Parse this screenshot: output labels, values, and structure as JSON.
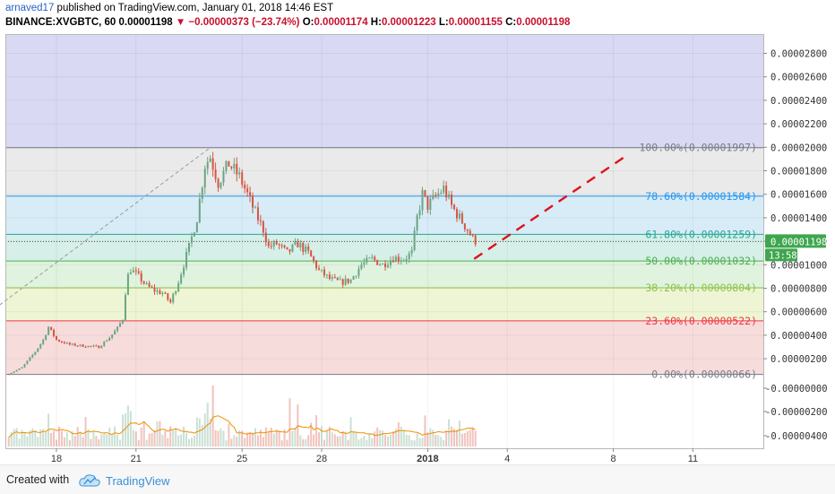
{
  "header": {
    "line1_user": "arnaved17",
    "line1_rest": " published on TradingView.com, January 01, 2018 14:46 EST",
    "symbol": "BINANCE:XVGBTC, 60",
    "last_price": "0.00001198",
    "change": "▼ −0.00000373 (−23.74%)",
    "o_label": "O:",
    "o_value": "0.00001174",
    "h_label": "H:",
    "h_value": "0.00001223",
    "l_label": "L:",
    "l_value": "0.00001155",
    "c_label": "C:",
    "c_value": "0.00001198"
  },
  "footer": {
    "created_with": "Created with",
    "brand": "TradingView"
  },
  "colors": {
    "up": "#6ba583",
    "down": "#d75442",
    "volume_ma": "#f09000",
    "price_badge": "#3fa64f",
    "trend": "#e0111e"
  },
  "chart_data": {
    "type": "candlestick",
    "title": "BINANCE:XVGBTC, 60",
    "x_tick_labels": [
      "18",
      "21",
      "25",
      "28",
      "2018",
      "4",
      "8",
      "11"
    ],
    "price_axis": {
      "ylim": [
        0.0,
        2.9e-05
      ],
      "tick_labels": [
        "0.00002800",
        "0.00002600",
        "0.00002400",
        "0.00002200",
        "0.00002000",
        "0.00001800",
        "0.00001600",
        "0.00001400",
        "0.00001200",
        "0.00001000",
        "0.00000800",
        "0.00000600",
        "0.00000400",
        "0.00000200"
      ]
    },
    "volume_axis": {
      "tick_labels": [
        "-0.00000000",
        "-0.00000200",
        "-0.00000400"
      ]
    },
    "current_price_label": "0.00001198",
    "countdown_label": "13:58",
    "fibonacci_levels": [
      {
        "label": "100.00%(0.00001997)",
        "price": 1.997e-05,
        "color": "#787b86"
      },
      {
        "label": "78.60%(0.00001584)",
        "price": 1.584e-05,
        "color": "#2196f3"
      },
      {
        "label": "61.80%(0.00001259)",
        "price": 1.259e-05,
        "color": "#26a69a"
      },
      {
        "label": "50.00%(0.00001032)",
        "price": 1.032e-05,
        "color": "#4caf50"
      },
      {
        "label": "38.20%(0.00000804)",
        "price": 8.04e-06,
        "color": "#8bc34a"
      },
      {
        "label": "23.60%(0.00000522)",
        "price": 5.22e-06,
        "color": "#f23645"
      },
      {
        "label": "0.00%(0.00000066)",
        "price": 6.6e-07,
        "color": "#787b86"
      }
    ],
    "price_path": [
      [
        16.2,
        7e-07
      ],
      [
        16.7,
        1.25e-06
      ],
      [
        17.2,
        2.6e-06
      ],
      [
        17.5,
        3.6e-06
      ],
      [
        17.7,
        4.7e-06
      ],
      [
        18.0,
        3.6e-06
      ],
      [
        18.5,
        3.2e-06
      ],
      [
        19.0,
        3.1e-06
      ],
      [
        19.6,
        3e-06
      ],
      [
        20.0,
        3.8e-06
      ],
      [
        20.3,
        4.6e-06
      ],
      [
        20.5,
        5.4e-06
      ],
      [
        20.65,
        8.8e-06
      ],
      [
        20.8,
        9.6e-06
      ],
      [
        21.1,
        9e-06
      ],
      [
        21.4,
        8.2e-06
      ],
      [
        21.7,
        7.8e-06
      ],
      [
        22.0,
        7.6e-06
      ],
      [
        22.3,
        6.8e-06
      ],
      [
        22.6,
        8.6e-06
      ],
      [
        23.0,
        1.15e-05
      ],
      [
        23.3,
        1.4e-05
      ],
      [
        23.6,
        1.85e-05
      ],
      [
        23.8,
        1.92e-05
      ],
      [
        24.1,
        1.7e-05
      ],
      [
        24.5,
        1.86e-05
      ],
      [
        24.9,
        1.75e-05
      ],
      [
        25.2,
        1.6e-05
      ],
      [
        25.5,
        1.44e-05
      ],
      [
        25.8,
        1.3e-05
      ],
      [
        26.0,
        1.15e-05
      ],
      [
        26.3,
        1.18e-05
      ],
      [
        26.7,
        1.1e-05
      ],
      [
        27.1,
        1.18e-05
      ],
      [
        27.5,
        1.1e-05
      ],
      [
        27.9,
        9.5e-06
      ],
      [
        28.3,
        8.8e-06
      ],
      [
        28.7,
        8.5e-06
      ],
      [
        29.1,
        8.7e-06
      ],
      [
        29.5,
        1e-05
      ],
      [
        29.9,
        1.05e-05
      ],
      [
        30.3,
        1e-05
      ],
      [
        30.7,
        1.06e-05
      ],
      [
        31.1,
        1.05e-05
      ],
      [
        31.4,
        1.1e-05
      ],
      [
        31.6,
        1.4e-05
      ],
      [
        31.8,
        1.6e-05
      ],
      [
        32.0,
        1.5e-05
      ],
      [
        32.3,
        1.58e-05
      ],
      [
        32.6,
        1.65e-05
      ],
      [
        32.9,
        1.5e-05
      ],
      [
        33.2,
        1.4e-05
      ],
      [
        33.5,
        1.3e-05
      ],
      [
        33.7,
        1.22e-05
      ],
      [
        33.85,
        1.198e-05
      ]
    ],
    "trend_line": {
      "style": "dashed",
      "points": [
        [
          33.75,
          1.05e-05
        ],
        [
          39.5,
          1.93e-05
        ]
      ]
    },
    "guide_line": {
      "style": "dashed",
      "points": [
        [
          15.1,
          5.3e-06
        ],
        [
          23.8,
          1.997e-05
        ]
      ]
    }
  }
}
